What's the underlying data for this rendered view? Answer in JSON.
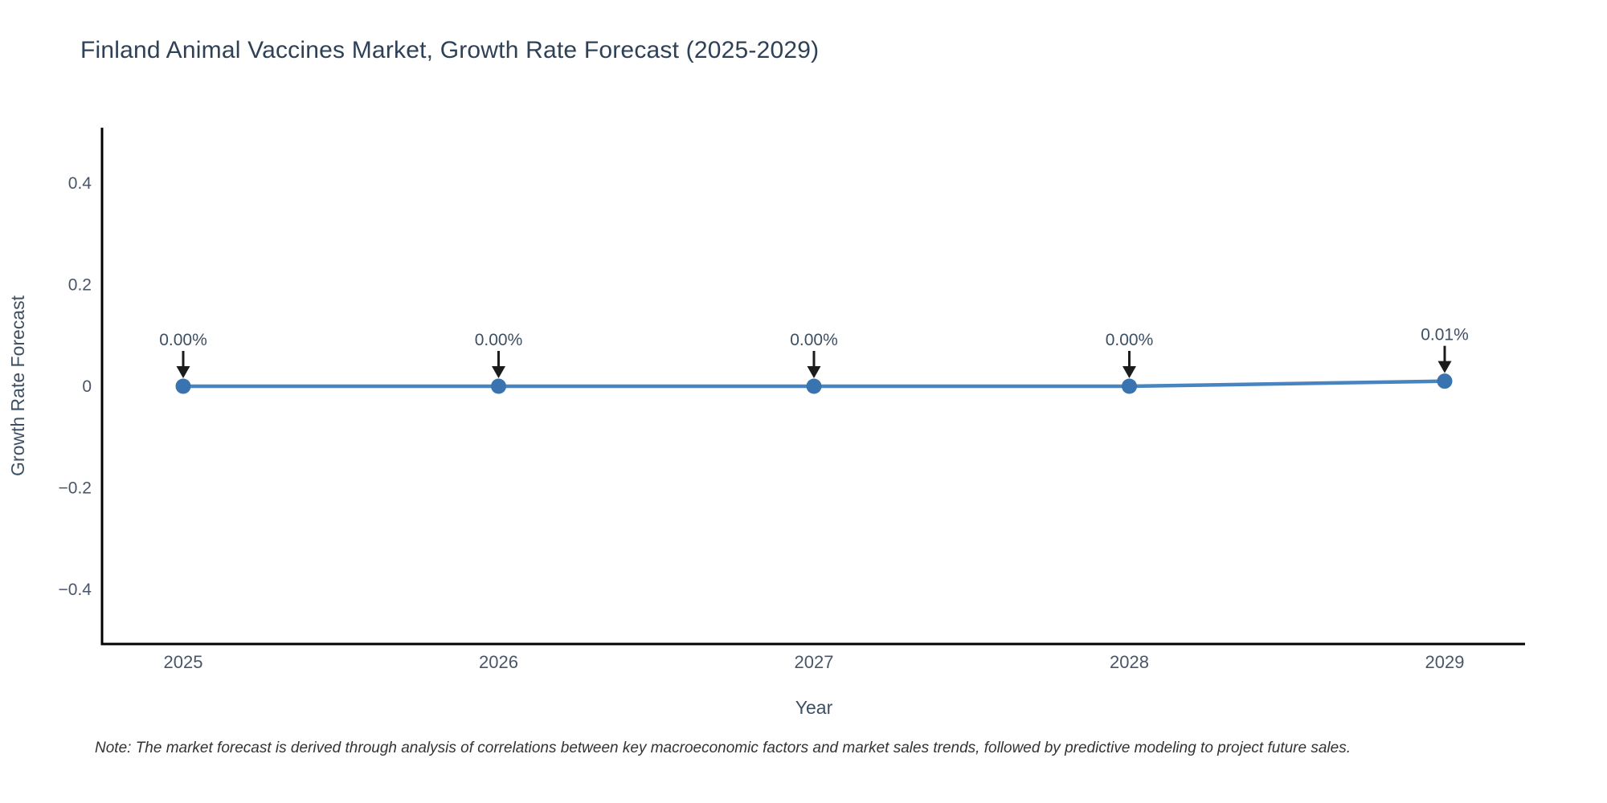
{
  "page": {
    "note": "Note: The market forecast is derived through analysis of correlations between key macroeconomic factors and market sales trends, followed by predictive modeling to project future sales."
  },
  "chart_data": {
    "type": "line",
    "title": "Finland Animal Vaccines Market, Growth Rate Forecast (2025-2029)",
    "xlabel": "Year",
    "ylabel": "Growth Rate Forecast",
    "x": [
      "2025",
      "2026",
      "2027",
      "2028",
      "2029"
    ],
    "values": [
      0.0,
      0.0,
      0.0,
      0.0,
      0.01
    ],
    "point_labels": [
      "0.00%",
      "0.00%",
      "0.00%",
      "0.00%",
      "0.01%"
    ],
    "yticks": [
      0.4,
      0.2,
      0,
      -0.2,
      -0.4
    ],
    "ytick_labels": [
      "0.4",
      "0.2",
      "0",
      "−0.2",
      "−0.4"
    ],
    "ylim": [
      -0.51,
      0.51
    ],
    "grid": false,
    "legend": "none",
    "annotations_arrow": "down",
    "colors": {
      "line": "#4884bf",
      "marker": "#3a74b0",
      "arrow": "#1c1c1c",
      "axis": "#000000",
      "title_text": "#2e4157",
      "axis_title_text": "#3d4f63",
      "tick_text": "#4a5668",
      "annotation_text": "#3d4f63",
      "note_text": "#333333"
    }
  }
}
